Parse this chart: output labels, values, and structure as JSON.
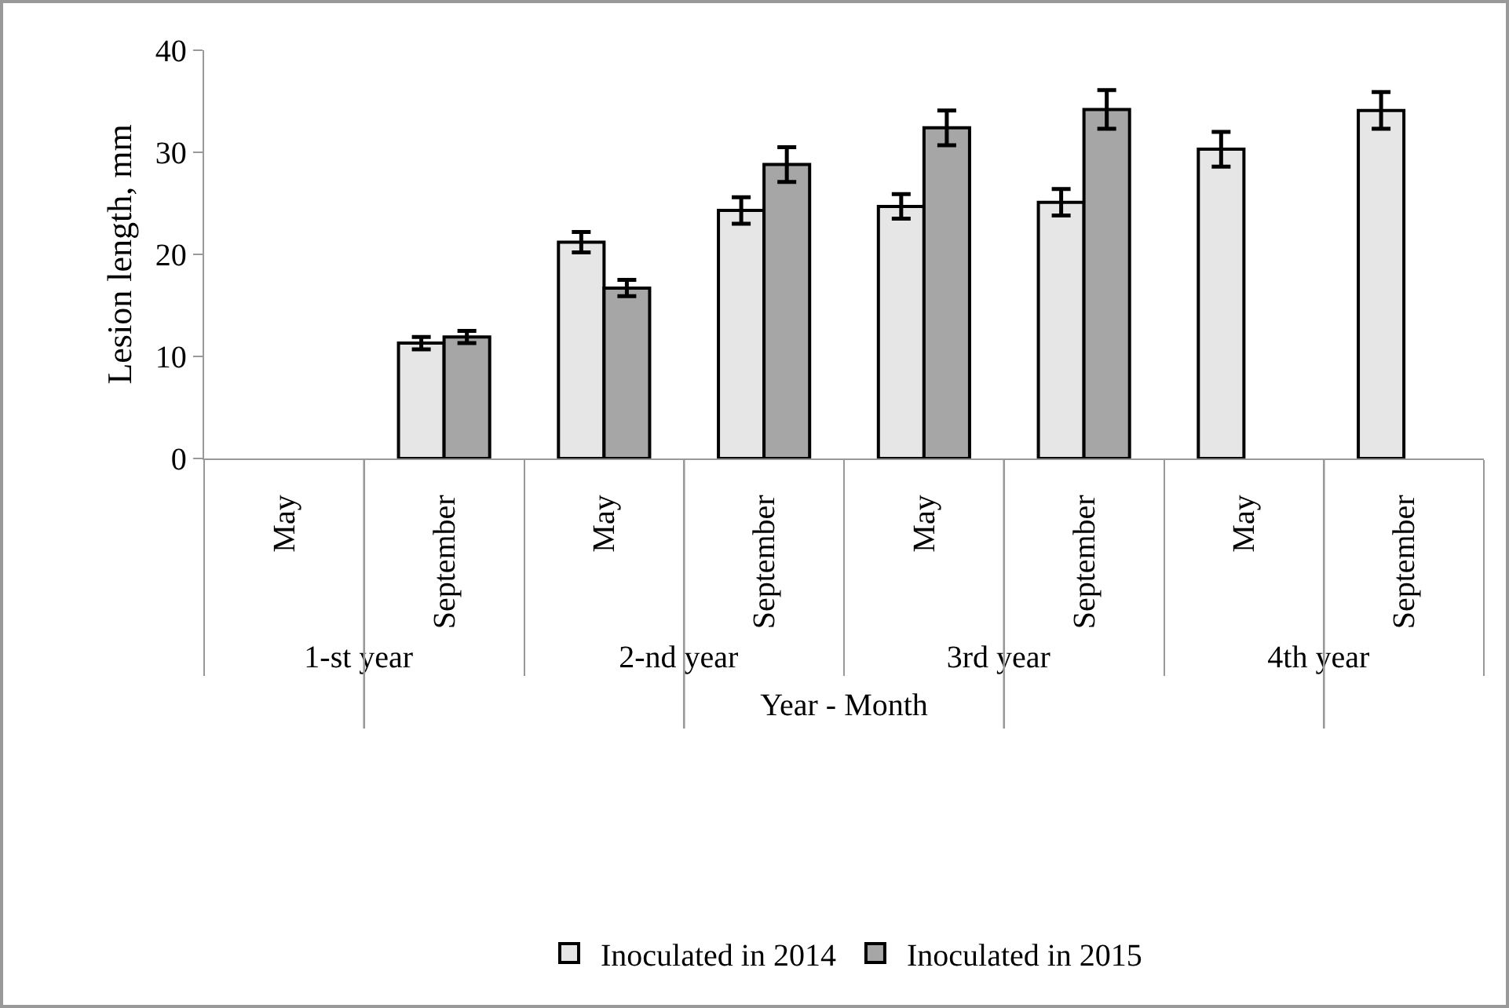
{
  "chart_data": {
    "type": "bar",
    "xlabel": "Year - Month",
    "ylabel": "Lesion length, mm",
    "categories": [
      "May",
      "September",
      "May",
      "September",
      "May",
      "September",
      "May",
      "September"
    ],
    "annotations": [
      "1-st year",
      "2-nd year",
      "3rd year",
      "4th year"
    ],
    "series": [
      {
        "name": "Inoculated in 2014",
        "color": "#e6e6e6",
        "values": [
          null,
          11.3,
          21.2,
          24.3,
          24.7,
          25.1,
          30.3,
          34.1
        ],
        "errors": [
          null,
          0.6,
          1.0,
          1.3,
          1.2,
          1.3,
          1.7,
          1.8
        ]
      },
      {
        "name": "Inoculated in 2015",
        "color": "#a6a6a6",
        "values": [
          null,
          11.9,
          16.7,
          28.8,
          32.4,
          34.2,
          null,
          null
        ],
        "errors": [
          null,
          0.6,
          0.8,
          1.7,
          1.7,
          1.9,
          null,
          null
        ]
      }
    ],
    "ylim": [
      0,
      40
    ],
    "yticks": [
      0,
      10,
      20,
      30,
      40
    ],
    "grid": false,
    "legend": "bottom"
  }
}
